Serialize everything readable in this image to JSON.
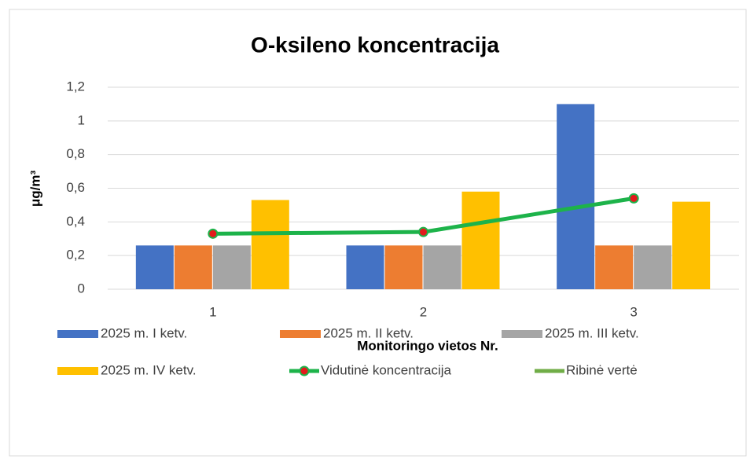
{
  "chart_data": {
    "type": "bar",
    "title": "O-ksileno koncentracija",
    "xlabel": "Monitoringo vietos Nr.",
    "ylabel": "μg/m³",
    "categories": [
      "1",
      "2",
      "3"
    ],
    "series": [
      {
        "name": "2025 m. I ketv.",
        "color": "#4472c4",
        "values": [
          0.26,
          0.26,
          1.1
        ]
      },
      {
        "name": "2025 m. II ketv.",
        "color": "#ed7d31",
        "values": [
          0.26,
          0.26,
          0.26
        ]
      },
      {
        "name": "2025 m. III ketv.",
        "color": "#a5a5a5",
        "values": [
          0.26,
          0.26,
          0.26
        ]
      },
      {
        "name": "2025 m. IV ketv.",
        "color": "#ffc000",
        "values": [
          0.53,
          0.58,
          0.52
        ]
      },
      {
        "name": "Vidutinė koncentracija",
        "type": "line",
        "color": "#1db34a",
        "marker_color": "#e31a1c",
        "values": [
          0.33,
          0.34,
          0.54
        ]
      },
      {
        "name": "Ribinė vertė",
        "type": "line",
        "color": "#70ad47",
        "values": [
          null,
          null,
          null
        ]
      }
    ],
    "ylim": [
      0,
      1.2
    ],
    "yticks": [
      0,
      {
        "value": 0.2,
        "label": "0,2"
      },
      {
        "value": 0.4,
        "label": "0,4"
      },
      {
        "value": 0.6,
        "label": "0,6"
      },
      {
        "value": 0.8,
        "label": "0,8"
      },
      1,
      {
        "value": 1.2,
        "label": "1,2"
      }
    ],
    "grid": true,
    "legend": "bottom"
  }
}
